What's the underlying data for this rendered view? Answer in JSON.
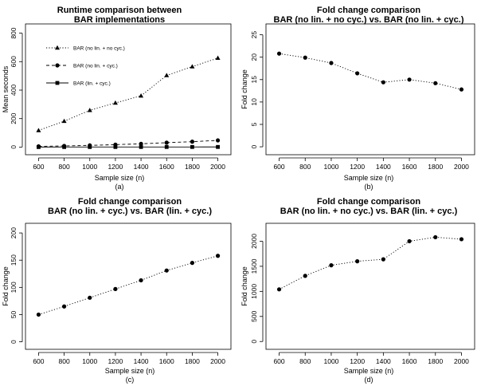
{
  "chart_data": [
    {
      "type": "line",
      "title_lines": [
        "Runtime comparison between",
        "BAR implementations"
      ],
      "xlabel": "Sample size (n)",
      "ylabel": "Mean seconds",
      "caption": "(a)",
      "x": [
        600,
        800,
        1000,
        1200,
        1400,
        1600,
        1800,
        2000
      ],
      "xticks": [
        600,
        800,
        1000,
        1200,
        1400,
        1600,
        1800,
        2000
      ],
      "xlim": [
        560,
        2040
      ],
      "ylim": [
        -20,
        820
      ],
      "yticks": [
        0,
        200,
        400,
        600,
        800
      ],
      "legend_position": "top-left",
      "series": [
        {
          "name": "BAR (no lin. + no cyc.)",
          "style": "dotted",
          "marker": "triangle",
          "values": [
            117,
            182,
            258,
            310,
            360,
            503,
            565,
            625
          ]
        },
        {
          "name": "BAR (no lin. + cyc.)",
          "style": "dashed",
          "marker": "circle",
          "values": [
            5,
            8,
            12,
            17,
            23,
            31,
            38,
            47
          ]
        },
        {
          "name": "BAR (lin. + cyc.)",
          "style": "solid",
          "marker": "square",
          "values": [
            0.3,
            0.4,
            0.5,
            0.6,
            0.7,
            0.8,
            0.9,
            1.0
          ]
        }
      ]
    },
    {
      "type": "line",
      "title_lines": [
        "Fold change comparison",
        "BAR (no lin. + no cyc.) vs. BAR (no lin. + cyc.)"
      ],
      "xlabel": "Sample size (n)",
      "ylabel": "Fold change",
      "caption": "(b)",
      "x": [
        600,
        800,
        1000,
        1200,
        1400,
        1600,
        1800,
        2000
      ],
      "xticks": [
        600,
        800,
        1000,
        1200,
        1400,
        1600,
        1800,
        2000
      ],
      "xlim": [
        560,
        2040
      ],
      "ylim": [
        -0.7,
        26
      ],
      "yticks": [
        0,
        5,
        10,
        15,
        20,
        25
      ],
      "series": [
        {
          "name": "fold change",
          "style": "dotted",
          "marker": "circle",
          "values": [
            20.8,
            19.9,
            18.7,
            16.4,
            14.4,
            15.0,
            14.2,
            12.8
          ]
        }
      ]
    },
    {
      "type": "line",
      "title_lines": [
        "Fold change comparison",
        "BAR (no lin. + cyc.) vs. BAR (lin. + cyc.)"
      ],
      "xlabel": "Sample size (n)",
      "ylabel": "Fold change",
      "caption": "(c)",
      "x": [
        600,
        800,
        1000,
        1200,
        1400,
        1600,
        1800,
        2000
      ],
      "xticks": [
        600,
        800,
        1000,
        1200,
        1400,
        1600,
        1800,
        2000
      ],
      "xlim": [
        560,
        2040
      ],
      "ylim": [
        -5,
        206
      ],
      "yticks": [
        0,
        50,
        100,
        150,
        200
      ],
      "series": [
        {
          "name": "fold change",
          "style": "dotted",
          "marker": "circle",
          "values": [
            50,
            65,
            81,
            97,
            113,
            131,
            145,
            158
          ]
        }
      ]
    },
    {
      "type": "line",
      "title_lines": [
        "Fold change comparison",
        "BAR (no lin. + no cyc.) vs. BAR (lin. + cyc.)"
      ],
      "xlabel": "Sample size (n)",
      "ylabel": "Fold change",
      "caption": "(d)",
      "x": [
        600,
        800,
        1000,
        1200,
        1400,
        1600,
        1800,
        2000
      ],
      "xticks": [
        600,
        800,
        1000,
        1200,
        1400,
        1600,
        1800,
        2000
      ],
      "xlim": [
        560,
        2040
      ],
      "ylim": [
        -60,
        2230
      ],
      "yticks": [
        0,
        500,
        1000,
        1500,
        2000
      ],
      "series": [
        {
          "name": "fold change",
          "style": "dotted",
          "marker": "circle",
          "values": [
            1040,
            1310,
            1520,
            1600,
            1640,
            2000,
            2080,
            2040
          ]
        }
      ]
    }
  ]
}
